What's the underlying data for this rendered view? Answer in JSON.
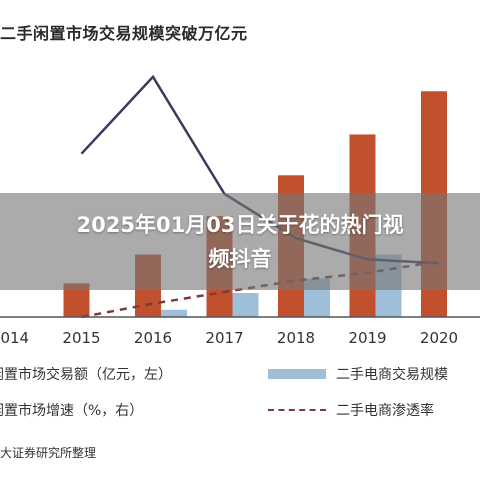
{
  "page": {
    "banner_text": "2025年01月03日关于花的热门视频抖音",
    "source": "大证券研究所整理"
  },
  "colors": {
    "bar_trade": "#c1502e",
    "bar_ecommerce": "#9fbfd8",
    "line_growth": "#3b3b5c",
    "line_penetration": "#7a3b3b",
    "axis": "#555555"
  },
  "chart_data": {
    "type": "bar",
    "title": "二手闲置市场交易规模突破万亿元",
    "categories": [
      "2014",
      "2015",
      "2016",
      "2017",
      "2018",
      "2019",
      "2020"
    ],
    "series": [
      {
        "name": "闲置市场交易额（亿元，左）",
        "kind": "bar",
        "values": [
          null,
          700,
          1300,
          2100,
          2950,
          3800,
          4700
        ]
      },
      {
        "name": "二手电商交易规模",
        "kind": "bar",
        "values": [
          null,
          null,
          150,
          500,
          800,
          1300,
          null
        ]
      },
      {
        "name": "闲置市场增速（%，右）",
        "kind": "line",
        "values": [
          null,
          85,
          125,
          64,
          41,
          30,
          28
        ]
      },
      {
        "name": "二手电商渗透率",
        "kind": "line-dashed",
        "values": [
          null,
          0,
          7,
          13,
          19,
          23,
          29
        ]
      }
    ],
    "y_left_range": [
      0,
      5600
    ],
    "y_right_range": [
      0,
      140
    ],
    "grid": false,
    "legend_placement": "bottom"
  }
}
